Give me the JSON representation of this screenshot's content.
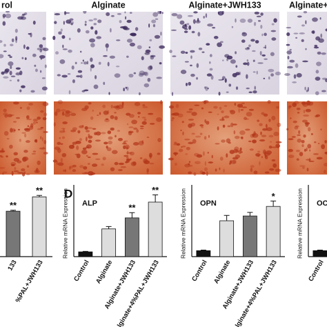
{
  "figure": {
    "headers": [
      "rol",
      "Alginate",
      "Alginate+JWH133",
      "Alginate+"
    ],
    "panel_label": "D"
  },
  "chart_data": [
    {
      "type": "bar",
      "categories": [
        "133",
        "%PAL+JWH133"
      ],
      "values": [
        9.5,
        12.5
      ],
      "errors": [
        0.2,
        0.3
      ],
      "colors": [
        "#777777",
        "#dddddd"
      ],
      "annotations": [
        "**",
        "**"
      ],
      "ylim": [
        0,
        15
      ]
    },
    {
      "type": "bar",
      "title": "ALP",
      "y_label": "Relative mRNA Expression",
      "categories": [
        "Control",
        "Alginate",
        "Alginate+JWH133",
        "Alginate+4%PAL+JWH133"
      ],
      "values": [
        1,
        5.8,
        8.1,
        11.4
      ],
      "errors": [
        0.1,
        0.5,
        1.1,
        1.5
      ],
      "colors": [
        "#111111",
        "#dddddd",
        "#777777",
        "#dddddd"
      ],
      "annotations": [
        null,
        null,
        "**",
        "**"
      ],
      "ylim": [
        0,
        15
      ]
    },
    {
      "type": "bar",
      "title": "OPN",
      "y_label": "Relative mRNA Expression",
      "categories": [
        "Control",
        "Alginate",
        "Alginate+JWH133",
        "Alginate+4%PAL+JWH133"
      ],
      "values": [
        1,
        6,
        6.8,
        8.4
      ],
      "errors": [
        0.1,
        0.9,
        0.6,
        0.9
      ],
      "colors": [
        "#111111",
        "#dddddd",
        "#777777",
        "#dddddd"
      ],
      "annotations": [
        null,
        null,
        null,
        "*"
      ],
      "ylim": [
        0,
        12
      ]
    },
    {
      "type": "bar",
      "title": "OC",
      "y_label": "Relative mRNA Expression",
      "categories": [
        "Control"
      ],
      "values": [
        1
      ],
      "errors": [
        0.1
      ],
      "colors": [
        "#111111"
      ],
      "ylim": [
        0,
        12
      ]
    }
  ]
}
